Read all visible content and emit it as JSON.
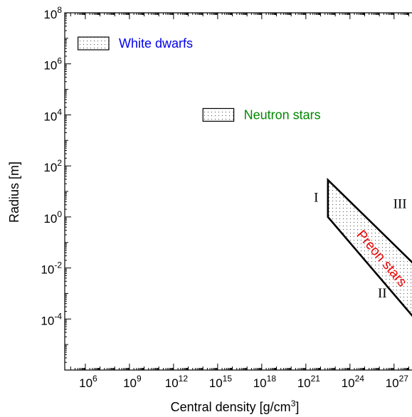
{
  "chart_data": {
    "type": "log-log region plot",
    "xlabel": "Central density",
    "xlabel_unit_prefix": "[g/cm",
    "xlabel_unit_exp": "3",
    "xlabel_unit_suffix": "]",
    "ylabel": "Radius  [m]",
    "x_scale": "log",
    "y_scale": "log",
    "xlim_log10": [
      4.6,
      28.8
    ],
    "ylim_log10": [
      -6,
      8
    ],
    "x_ticks": [
      {
        "base": "10",
        "exp": "6",
        "log": 6
      },
      {
        "base": "10",
        "exp": "9",
        "log": 9
      },
      {
        "base": "10",
        "exp": "12",
        "log": 12
      },
      {
        "base": "10",
        "exp": "15",
        "log": 15
      },
      {
        "base": "10",
        "exp": "18",
        "log": 18
      },
      {
        "base": "10",
        "exp": "21",
        "log": 21
      },
      {
        "base": "10",
        "exp": "24",
        "log": 24
      },
      {
        "base": "10",
        "exp": "27",
        "log": 27
      }
    ],
    "y_ticks": [
      {
        "base": "10",
        "exp": "8",
        "log": 8
      },
      {
        "base": "10",
        "exp": "6",
        "log": 6
      },
      {
        "base": "10",
        "exp": "4",
        "log": 4
      },
      {
        "base": "10",
        "exp": "2",
        "log": 2
      },
      {
        "base": "10",
        "exp": "0",
        "log": 0
      },
      {
        "base": "10",
        "exp": "-2",
        "log": -2
      },
      {
        "base": "10",
        "exp": "-4",
        "log": -4
      }
    ],
    "regions": [
      {
        "name": "White dwarfs",
        "color": "#0000ee",
        "x_log_range": [
          5.5,
          7.6
        ],
        "y_log_range": [
          6.55,
          7.05
        ]
      },
      {
        "name": "Neutron stars",
        "color": "#008800",
        "x_log_range": [
          14.0,
          16.1
        ],
        "y_log_range": [
          3.75,
          4.25
        ]
      },
      {
        "name": "Preon stars",
        "color": "#ee0000",
        "polygon_log": [
          [
            22.5,
            1.45
          ],
          [
            22.5,
            0.0
          ],
          [
            28.8,
            -4.25
          ],
          [
            28.8,
            -2.1
          ]
        ]
      }
    ],
    "boundary_labels": [
      {
        "text": "I",
        "x_log": 21.7,
        "y_log": 0.6
      },
      {
        "text": "II",
        "x_log": 26.2,
        "y_log": -3.15
      },
      {
        "text": "III",
        "x_log": 27.4,
        "y_log": 0.35
      }
    ]
  }
}
